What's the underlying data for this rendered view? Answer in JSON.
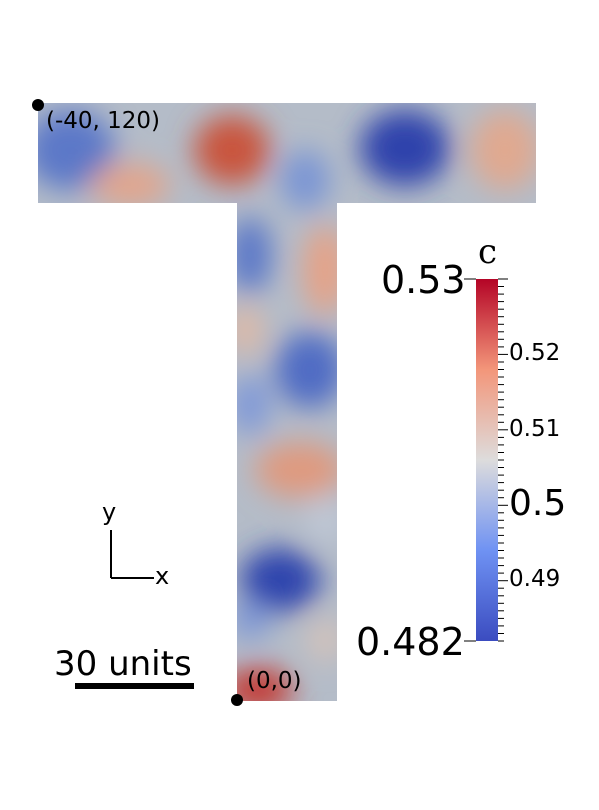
{
  "field": {
    "colorbar_title": "c",
    "max_label": "0.53",
    "min_label": "0.482",
    "ticks": [
      {
        "label": "0.52",
        "value": 0.52,
        "size": "small"
      },
      {
        "label": "0.51",
        "value": 0.51,
        "size": "small"
      },
      {
        "label": "0.5",
        "value": 0.5,
        "size": "large"
      },
      {
        "label": "0.49",
        "value": 0.49,
        "size": "small"
      }
    ],
    "range": [
      0.482,
      0.53
    ],
    "colormap": [
      "#3b4cc0",
      "#6f92f3",
      "#dddcdc",
      "#f3967a",
      "#b40426"
    ]
  },
  "points": {
    "top_left": "(-40, 120)",
    "origin": "(0,0)"
  },
  "axes": {
    "y_label": "y",
    "x_label": "x"
  },
  "scale_bar": {
    "label": "30 units"
  }
}
